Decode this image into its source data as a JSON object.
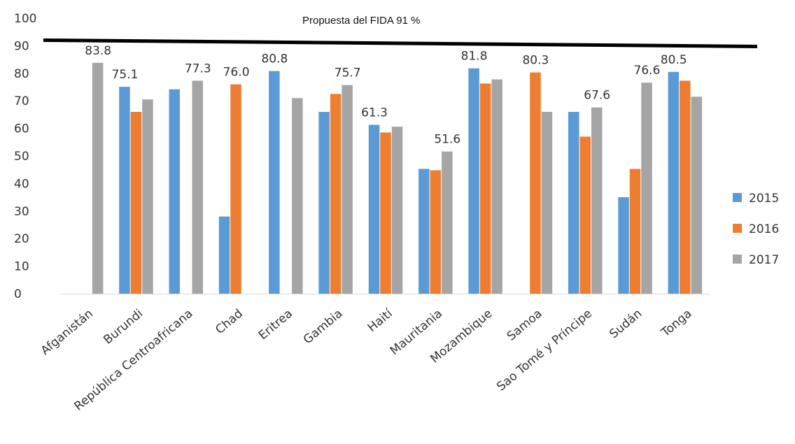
{
  "chart_data": {
    "type": "bar",
    "title": "",
    "xlabel": "",
    "ylabel": "",
    "ylim": [
      0,
      100
    ],
    "yticks": [
      0,
      10,
      20,
      30,
      40,
      50,
      60,
      70,
      80,
      90,
      100
    ],
    "grid": false,
    "legend_position": "right",
    "categories": [
      "Afganistán",
      "Burundi",
      "República Centroafricana",
      "Chad",
      "Eritrea",
      "Gambia",
      "Haití",
      "Mauritania",
      "Mozambique",
      "Samoa",
      "Sao Tomé y Príncipe",
      "Sudán",
      "Tonga"
    ],
    "series": [
      {
        "name": "2015",
        "color": "#5b9bd5",
        "values": [
          null,
          75.1,
          74.2,
          28.0,
          80.8,
          66.0,
          61.3,
          45.3,
          81.8,
          null,
          66.0,
          35.0,
          80.5
        ]
      },
      {
        "name": "2016",
        "color": "#ed7d31",
        "values": [
          null,
          66.0,
          null,
          76.0,
          null,
          72.5,
          58.5,
          44.8,
          76.3,
          80.3,
          57.0,
          45.3,
          77.3
        ]
      },
      {
        "name": "2017",
        "color": "#a5a5a5",
        "values": [
          83.8,
          70.5,
          77.3,
          null,
          71.0,
          75.7,
          60.6,
          51.6,
          77.8,
          66.0,
          67.6,
          76.6,
          71.5
        ]
      }
    ],
    "data_labels": [
      {
        "category": "Afganistán",
        "series": "2017",
        "text": "83.8"
      },
      {
        "category": "Burundi",
        "series": "2015",
        "text": "75.1"
      },
      {
        "category": "República Centroafricana",
        "series": "2017",
        "text": "77.3"
      },
      {
        "category": "Chad",
        "series": "2016",
        "text": "76.0"
      },
      {
        "category": "Eritrea",
        "series": "2015",
        "text": "80.8"
      },
      {
        "category": "Gambia",
        "series": "2017",
        "text": "75.7"
      },
      {
        "category": "Haití",
        "series": "2015",
        "text": "61.3"
      },
      {
        "category": "Mauritania",
        "series": "2017",
        "text": "51.6"
      },
      {
        "category": "Mozambique",
        "series": "2015",
        "text": "81.8"
      },
      {
        "category": "Samoa",
        "series": "2016",
        "text": "80.3"
      },
      {
        "category": "Sao Tomé y Príncipe",
        "series": "2017",
        "text": "67.6"
      },
      {
        "category": "Sudán",
        "series": "2017",
        "text": "76.6"
      },
      {
        "category": "Tonga",
        "series": "2015",
        "text": "80.5"
      }
    ],
    "target_line": {
      "value": 91,
      "label": "Propuesta del FIDA 91 %"
    }
  }
}
